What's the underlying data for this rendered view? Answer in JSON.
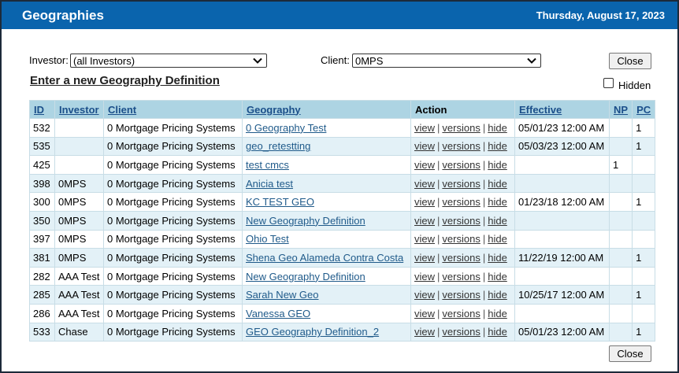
{
  "header": {
    "title": "Geographies",
    "date": "Thursday, August 17, 2023"
  },
  "filters": {
    "investor_label": "Investor:",
    "investor_value": "(all Investors)",
    "client_label": "Client:",
    "client_value": "0MPS"
  },
  "buttons": {
    "close_top": "Close",
    "close_bottom": "Close"
  },
  "new_link": "Enter a new Geography Definition",
  "hidden_label": "Hidden",
  "hidden_checked": false,
  "table": {
    "columns": [
      "ID",
      "Investor",
      "Client",
      "Geography",
      "Action",
      "Effective",
      "NP",
      "PC"
    ],
    "action_labels": [
      "view",
      "versions",
      "hide"
    ],
    "rows": [
      {
        "id": "532",
        "investor": "",
        "client": "0 Mortgage Pricing Systems",
        "geography": "0 Geography Test",
        "effective": "05/01/23 12:00 AM",
        "np": "",
        "pc": "1"
      },
      {
        "id": "535",
        "investor": "",
        "client": "0 Mortgage Pricing Systems",
        "geography": "geo_retestting",
        "effective": "05/03/23 12:00 AM",
        "np": "",
        "pc": "1"
      },
      {
        "id": "425",
        "investor": "",
        "client": "0 Mortgage Pricing Systems",
        "geography": "test cmcs",
        "effective": "",
        "np": "1",
        "pc": ""
      },
      {
        "id": "398",
        "investor": "0MPS",
        "client": "0 Mortgage Pricing Systems",
        "geography": "Anicia test",
        "effective": "",
        "np": "",
        "pc": ""
      },
      {
        "id": "300",
        "investor": "0MPS",
        "client": "0 Mortgage Pricing Systems",
        "geography": "KC TEST GEO",
        "effective": "01/23/18 12:00 AM",
        "np": "",
        "pc": "1"
      },
      {
        "id": "350",
        "investor": "0MPS",
        "client": "0 Mortgage Pricing Systems",
        "geography": "New Geography Definition",
        "effective": "",
        "np": "",
        "pc": ""
      },
      {
        "id": "397",
        "investor": "0MPS",
        "client": "0 Mortgage Pricing Systems",
        "geography": "Ohio Test",
        "effective": "",
        "np": "",
        "pc": ""
      },
      {
        "id": "381",
        "investor": "0MPS",
        "client": "0 Mortgage Pricing Systems",
        "geography": "Shena Geo Alameda Contra Costa",
        "effective": "11/22/19 12:00 AM",
        "np": "",
        "pc": "1"
      },
      {
        "id": "282",
        "investor": "AAA Test",
        "client": "0 Mortgage Pricing Systems",
        "geography": "New Geography Definition",
        "effective": "",
        "np": "",
        "pc": ""
      },
      {
        "id": "285",
        "investor": "AAA Test",
        "client": "0 Mortgage Pricing Systems",
        "geography": "Sarah New Geo",
        "effective": "10/25/17 12:00 AM",
        "np": "",
        "pc": "1"
      },
      {
        "id": "286",
        "investor": "AAA Test",
        "client": "0 Mortgage Pricing Systems",
        "geography": "Vanessa GEO",
        "effective": "",
        "np": "",
        "pc": ""
      },
      {
        "id": "533",
        "investor": "Chase",
        "client": "0 Mortgage Pricing Systems",
        "geography": "GEO Geography Definition_2",
        "effective": "05/01/23 12:00 AM",
        "np": "",
        "pc": "1"
      }
    ]
  },
  "colors": {
    "title_bar": "#0a64ad",
    "header_row": "#add4e3",
    "alt_row": "#e3f1f7",
    "link": "#1b4f8a"
  }
}
